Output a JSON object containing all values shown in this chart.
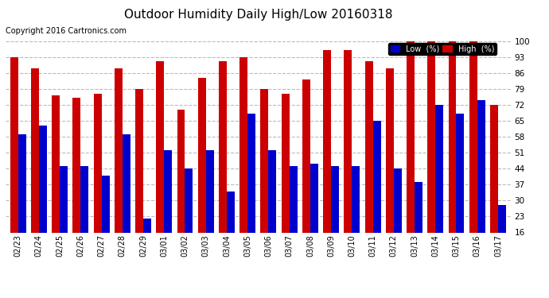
{
  "title": "Outdoor Humidity Daily High/Low 20160318",
  "copyright": "Copyright 2016 Cartronics.com",
  "dates": [
    "02/23",
    "02/24",
    "02/25",
    "02/26",
    "02/27",
    "02/28",
    "02/29",
    "03/01",
    "03/02",
    "03/03",
    "03/04",
    "03/05",
    "03/06",
    "03/07",
    "03/08",
    "03/09",
    "03/10",
    "03/11",
    "03/12",
    "03/13",
    "03/14",
    "03/15",
    "03/16",
    "03/17"
  ],
  "high": [
    93,
    88,
    76,
    75,
    77,
    88,
    79,
    91,
    70,
    84,
    91,
    93,
    79,
    77,
    83,
    96,
    96,
    91,
    88,
    100,
    100,
    100,
    100,
    72
  ],
  "low": [
    59,
    63,
    45,
    45,
    41,
    59,
    22,
    52,
    44,
    52,
    34,
    68,
    52,
    45,
    46,
    45,
    45,
    65,
    44,
    38,
    72,
    68,
    74,
    28
  ],
  "low_color": "#0000cc",
  "high_color": "#cc0000",
  "bg_color": "#ffffff",
  "plot_bg_color": "#ffffff",
  "grid_color": "#bbbbbb",
  "ylim": [
    16,
    101
  ],
  "yticks": [
    16,
    23,
    30,
    37,
    44,
    51,
    58,
    65,
    72,
    79,
    86,
    93,
    100
  ],
  "title_fontsize": 11,
  "copyright_fontsize": 7,
  "legend_low_color": "#0000cc",
  "legend_high_color": "#cc0000"
}
